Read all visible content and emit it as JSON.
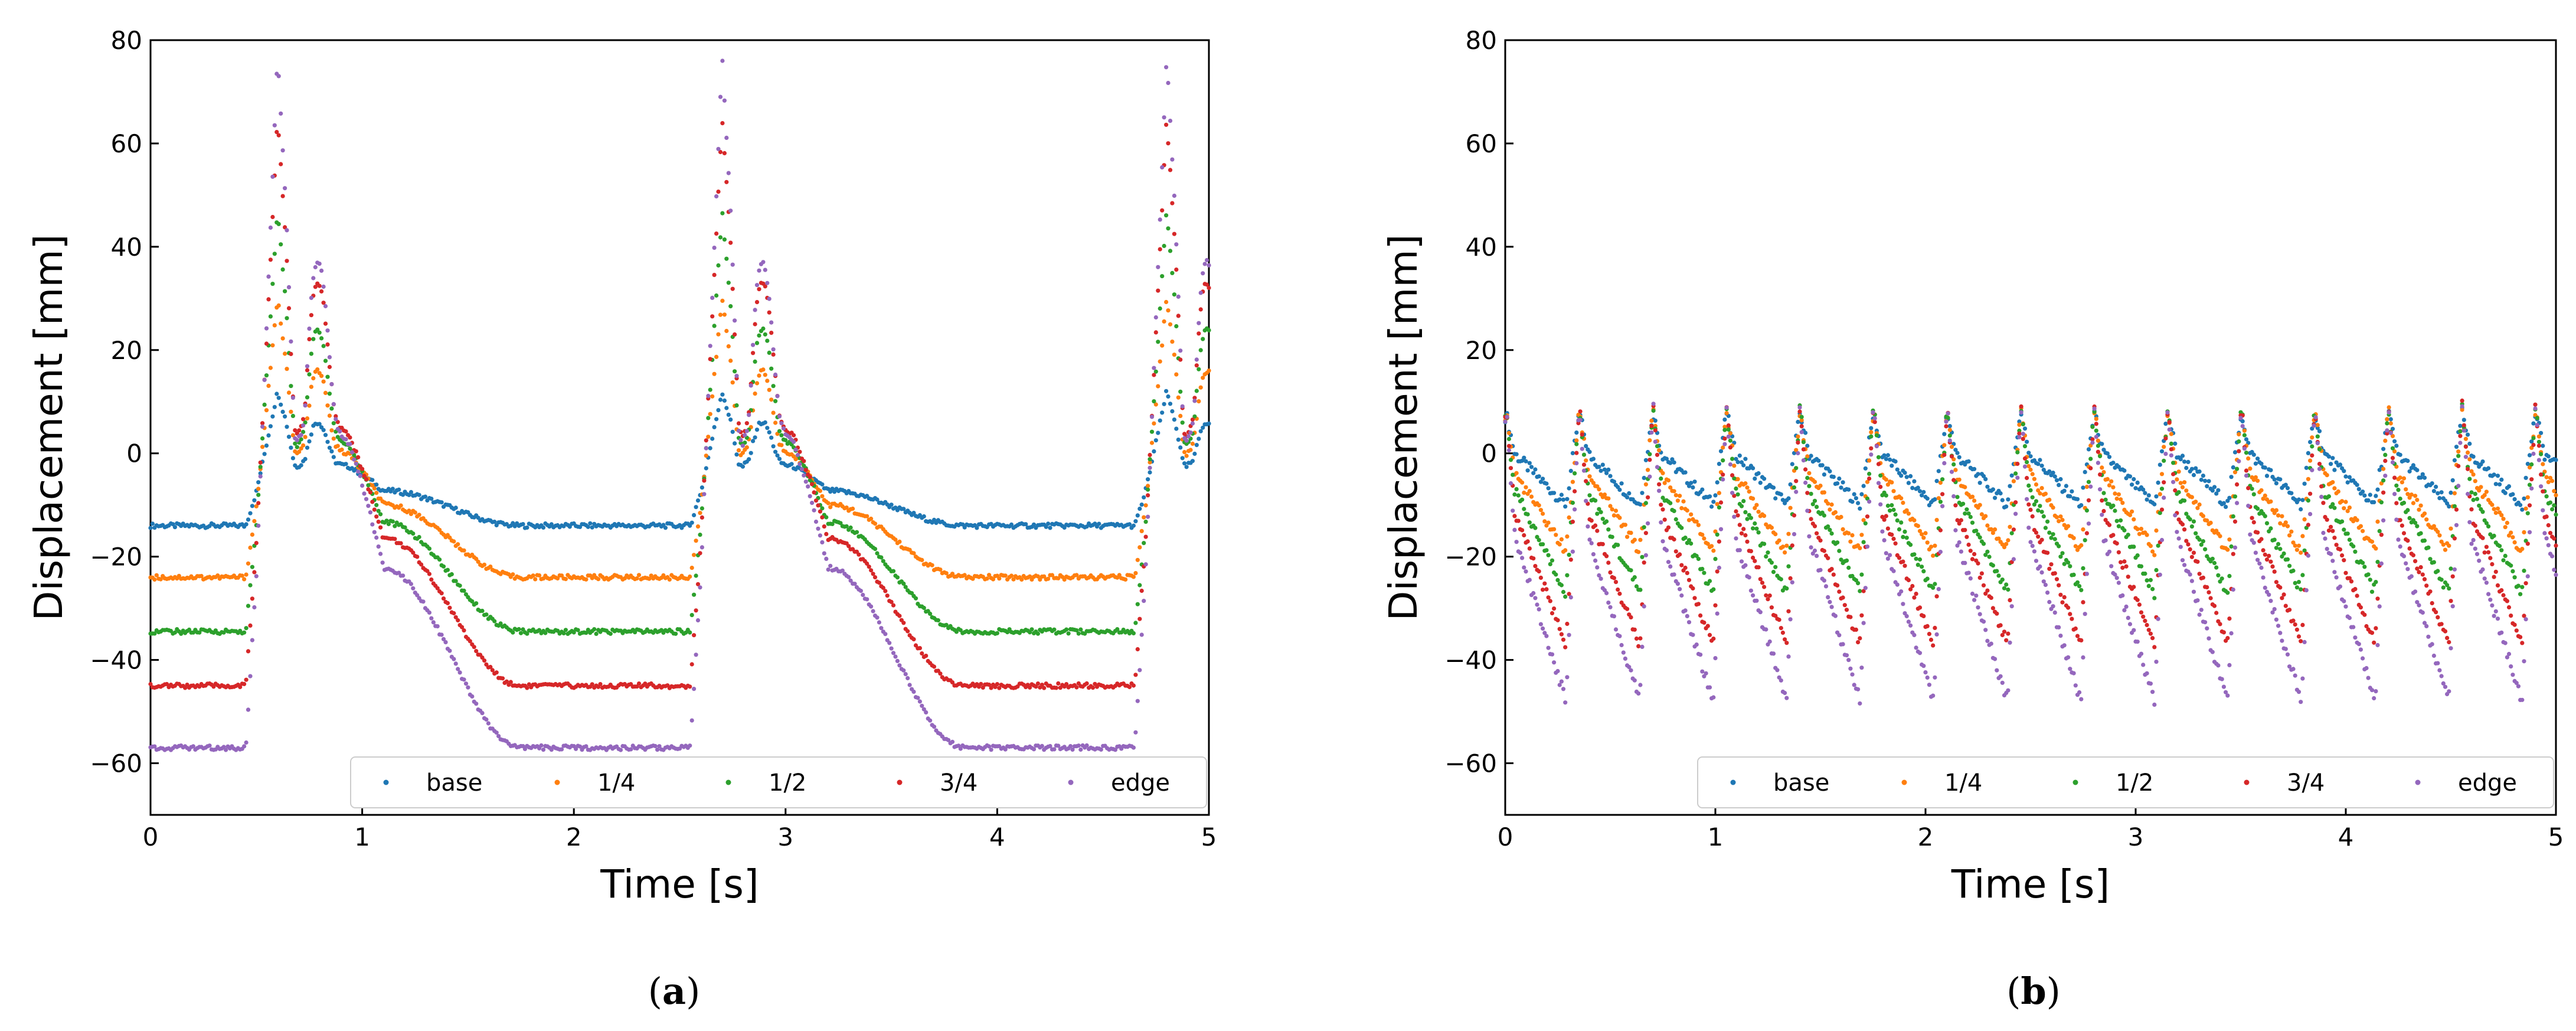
{
  "figure": {
    "panel_a_caption": {
      "open": "(",
      "letter": "a",
      "close": ")"
    },
    "panel_b_caption": {
      "open": "(",
      "letter": "b",
      "close": ")"
    }
  },
  "chart_data": [
    {
      "type": "scatter",
      "panel": "a",
      "title": "",
      "xlabel": "Time [s]",
      "ylabel": "Displacement [mm]",
      "xlim": [
        0,
        5
      ],
      "ylim": [
        -70,
        80
      ],
      "xticks": [
        0,
        1,
        2,
        3,
        4,
        5
      ],
      "yticks": [
        -60,
        -40,
        -20,
        0,
        20,
        40,
        60,
        80
      ],
      "grid": false,
      "legend_position": "bottom-right",
      "period_s": 2.1,
      "series": [
        {
          "name": "base",
          "color": "#1f77b4",
          "rest": -14,
          "peak1": 12,
          "peak2": 6,
          "shoulder": 5
        },
        {
          "name": "1/4",
          "color": "#ff7f0e",
          "rest": -24,
          "peak1": 30,
          "peak2": 16,
          "shoulder": 10
        },
        {
          "name": "1/2",
          "color": "#2ca02c",
          "rest": -34.5,
          "peak1": 47,
          "peak2": 24,
          "shoulder": 16
        },
        {
          "name": "3/4",
          "color": "#d62728",
          "rest": -45,
          "peak1": 65,
          "peak2": 33,
          "shoulder": 20
        },
        {
          "name": "edge",
          "color": "#9467bd",
          "rest": -57,
          "peak1": 77,
          "peak2": 37,
          "shoulder": 21
        }
      ]
    },
    {
      "type": "scatter",
      "panel": "b",
      "title": "",
      "xlabel": "Time [s]",
      "ylabel": "Displacement [mm]",
      "xlim": [
        0,
        5
      ],
      "ylim": [
        -70,
        80
      ],
      "xticks": [
        0,
        1,
        2,
        3,
        4,
        5
      ],
      "yticks": [
        -60,
        -40,
        -20,
        0,
        20,
        40,
        60,
        80
      ],
      "grid": false,
      "legend_position": "bottom-right",
      "period_s": 0.35,
      "series": [
        {
          "name": "base",
          "color": "#1f77b4",
          "peak": 8,
          "trough": -10
        },
        {
          "name": "1/4",
          "color": "#ff7f0e",
          "peak": 8.5,
          "trough": -19
        },
        {
          "name": "1/2",
          "color": "#2ca02c",
          "peak": 9,
          "trough": -27
        },
        {
          "name": "3/4",
          "color": "#d62728",
          "peak": 9.5,
          "trough": -37
        },
        {
          "name": "edge",
          "color": "#9467bd",
          "peak": 10,
          "trough": -48
        }
      ]
    }
  ]
}
